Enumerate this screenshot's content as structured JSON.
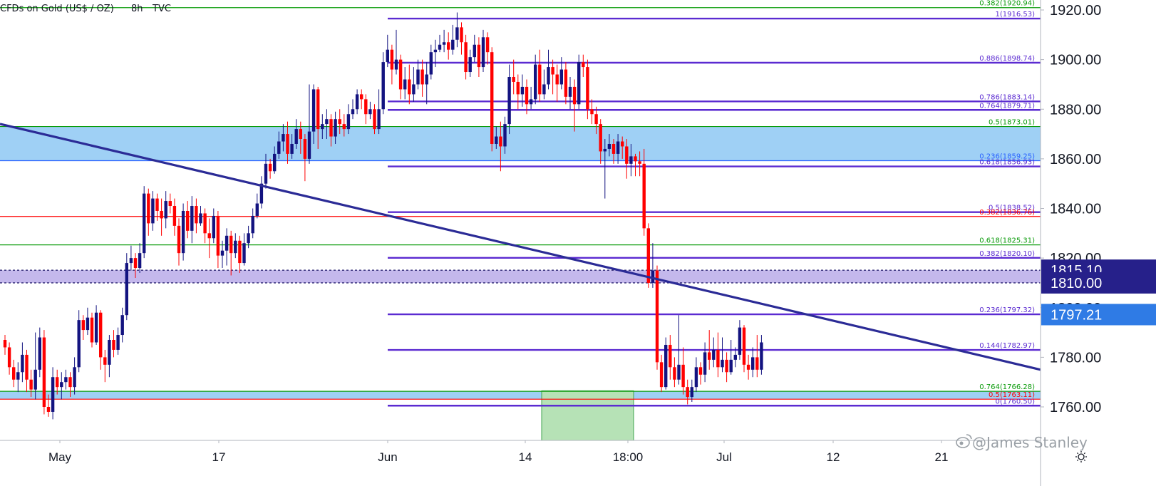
{
  "header": {
    "symbol": "CFDs on Gold (US$ / OZ)",
    "interval": "8h",
    "source": "TVC"
  },
  "watermark": {
    "text": "@James Stanley",
    "icon": "weibo-icon"
  },
  "settings_icon": "sun-icon",
  "colors": {
    "up_candle": "#131380",
    "down_candle": "#ff0000",
    "trendline": "#2b2b96",
    "fib_purple": "#5b2bd1",
    "fib_green": "#0a9b0a",
    "fib_red": "#ff0000",
    "zone_blue": "#9fd0f5",
    "zone_purple": "#c4b8ec",
    "zone_green": "#b6e2b6",
    "badge_dark": "#26208a",
    "badge_blue": "#2f7be5"
  },
  "chart_data": {
    "type": "candlestick",
    "x_labels": [
      "May",
      "17",
      "Jun",
      "14",
      "18:00",
      "Jul",
      "12",
      "21"
    ],
    "y_ticks": [
      1760,
      1780,
      1800,
      1820,
      1840,
      1860,
      1880,
      1900,
      1920
    ],
    "y_tick_labels": [
      "1760.00",
      "1780.00",
      "1800.00",
      "1820.00",
      "1840.00",
      "1860.00",
      "1880.00",
      "1900.00",
      "1920.00"
    ],
    "ylim": [
      1745,
      1923
    ],
    "price_badges": [
      {
        "label": "1815.10",
        "value": 1815.1,
        "style": "dark"
      },
      {
        "label": "1810.00",
        "value": 1810.0,
        "style": "dark"
      },
      {
        "label": "1797.21",
        "value": 1797.21,
        "style": "blue"
      }
    ],
    "zones": [
      {
        "from": 1859.25,
        "to": 1873.01,
        "color": "blue",
        "scope": "full"
      },
      {
        "from": 1810.0,
        "to": 1815.1,
        "color": "purple",
        "scope": "full"
      },
      {
        "from": 1763.11,
        "to": 1766.28,
        "color": "blue",
        "scope": "full"
      },
      {
        "from": 1745,
        "to": 1766.5,
        "color": "green",
        "scope": "box"
      }
    ],
    "fib_levels": [
      {
        "label": "0.382(1920.94)",
        "value": 1920.94,
        "color": "green",
        "scope": "full"
      },
      {
        "label": "1(1916.53)",
        "value": 1916.53,
        "color": "purple",
        "scope": "jun"
      },
      {
        "label": "0.886(1898.74)",
        "value": 1898.74,
        "color": "purple",
        "scope": "jun"
      },
      {
        "label": "0.786(1883.14)",
        "value": 1883.14,
        "color": "purple",
        "scope": "jun"
      },
      {
        "label": "0.764(1879.71)",
        "value": 1879.71,
        "color": "purple",
        "scope": "jun"
      },
      {
        "label": "0.5(1873.01)",
        "value": 1873.01,
        "color": "green",
        "scope": "full"
      },
      {
        "label": "0.236(1859.25)",
        "value": 1859.25,
        "color": "blue",
        "scope": "full"
      },
      {
        "label": "0.618(1856.93)",
        "value": 1856.93,
        "color": "purple",
        "scope": "jun"
      },
      {
        "label": "0.5(1838.52)",
        "value": 1838.52,
        "color": "purple",
        "scope": "jun"
      },
      {
        "label": "0.382(1836.76)",
        "value": 1836.76,
        "color": "red",
        "scope": "full"
      },
      {
        "label": "0.618(1825.31)",
        "value": 1825.31,
        "color": "green",
        "scope": "full"
      },
      {
        "label": "0.382(1820.10)",
        "value": 1820.1,
        "color": "purple",
        "scope": "jun"
      },
      {
        "label": "0.236(1797.32)",
        "value": 1797.32,
        "color": "purple",
        "scope": "jun"
      },
      {
        "label": "0.144(1782.97)",
        "value": 1782.97,
        "color": "purple",
        "scope": "jun"
      },
      {
        "label": "0.764(1766.28)",
        "value": 1766.28,
        "color": "green",
        "scope": "full"
      },
      {
        "label": "0.5(1763.11)",
        "value": 1763.11,
        "color": "red",
        "scope": "full"
      },
      {
        "label": "0(1760.50)",
        "value": 1760.5,
        "color": "purple",
        "scope": "jun"
      }
    ],
    "trendline": {
      "from": {
        "bar": -1,
        "value": 1874
      },
      "to": {
        "bar": 179,
        "value": 1799.5
      }
    },
    "candles": [
      [
        1787,
        1784,
        1789,
        1781
      ],
      [
        1784,
        1776,
        1786,
        1773
      ],
      [
        1776,
        1771,
        1779,
        1768
      ],
      [
        1771,
        1774,
        1778,
        1766
      ],
      [
        1774,
        1781,
        1786,
        1770
      ],
      [
        1781,
        1771,
        1783,
        1766
      ],
      [
        1771,
        1767,
        1775,
        1764
      ],
      [
        1767,
        1775,
        1790,
        1763
      ],
      [
        1775,
        1788,
        1792,
        1772
      ],
      [
        1788,
        1760,
        1791,
        1757
      ],
      [
        1760,
        1758,
        1765,
        1756
      ],
      [
        1758,
        1772,
        1776,
        1755
      ],
      [
        1772,
        1768,
        1775,
        1765
      ],
      [
        1768,
        1770,
        1774,
        1763
      ],
      [
        1770,
        1772,
        1775,
        1767
      ],
      [
        1772,
        1768,
        1774,
        1764
      ],
      [
        1768,
        1776,
        1780,
        1765
      ],
      [
        1776,
        1795,
        1799,
        1774
      ],
      [
        1795,
        1791,
        1797,
        1787
      ],
      [
        1791,
        1796,
        1800,
        1789
      ],
      [
        1796,
        1786,
        1798,
        1784
      ],
      [
        1786,
        1798,
        1801,
        1785
      ],
      [
        1798,
        1780,
        1799,
        1775
      ],
      [
        1780,
        1777,
        1783,
        1770
      ],
      [
        1777,
        1787,
        1789,
        1772
      ],
      [
        1787,
        1783,
        1791,
        1780
      ],
      [
        1783,
        1789,
        1792,
        1781
      ],
      [
        1789,
        1797,
        1800,
        1786
      ],
      [
        1797,
        1818,
        1822,
        1795
      ],
      [
        1818,
        1820,
        1825,
        1815
      ],
      [
        1820,
        1816,
        1822,
        1812
      ],
      [
        1816,
        1822,
        1826,
        1814
      ],
      [
        1822,
        1846,
        1849,
        1820
      ],
      [
        1846,
        1834,
        1848,
        1829
      ],
      [
        1834,
        1844,
        1847,
        1831
      ],
      [
        1844,
        1839,
        1846,
        1835
      ],
      [
        1839,
        1836,
        1844,
        1829
      ],
      [
        1836,
        1843,
        1847,
        1832
      ],
      [
        1843,
        1841,
        1846,
        1838
      ],
      [
        1841,
        1833,
        1844,
        1829
      ],
      [
        1833,
        1822,
        1836,
        1817
      ],
      [
        1822,
        1839,
        1842,
        1819
      ],
      [
        1839,
        1831,
        1843,
        1828
      ],
      [
        1831,
        1841,
        1845,
        1826
      ],
      [
        1841,
        1834,
        1844,
        1830
      ],
      [
        1834,
        1838,
        1841,
        1833
      ],
      [
        1838,
        1830,
        1840,
        1826
      ],
      [
        1830,
        1828,
        1836,
        1820
      ],
      [
        1828,
        1837,
        1840,
        1826
      ],
      [
        1837,
        1821,
        1839,
        1816
      ],
      [
        1821,
        1823,
        1827,
        1816
      ],
      [
        1823,
        1829,
        1832,
        1817
      ],
      [
        1829,
        1822,
        1831,
        1813
      ],
      [
        1822,
        1827,
        1830,
        1820
      ],
      [
        1827,
        1818,
        1829,
        1814
      ],
      [
        1818,
        1826,
        1830,
        1817
      ],
      [
        1826,
        1830,
        1833,
        1824
      ],
      [
        1830,
        1837,
        1840,
        1828
      ],
      [
        1837,
        1842,
        1846,
        1836
      ],
      [
        1842,
        1850,
        1853,
        1840
      ],
      [
        1850,
        1858,
        1862,
        1848
      ],
      [
        1858,
        1855,
        1860,
        1852
      ],
      [
        1855,
        1862,
        1865,
        1854
      ],
      [
        1862,
        1867,
        1871,
        1860
      ],
      [
        1867,
        1870,
        1874,
        1863
      ],
      [
        1870,
        1862,
        1875,
        1858
      ],
      [
        1862,
        1866,
        1870,
        1860
      ],
      [
        1866,
        1872,
        1876,
        1864
      ],
      [
        1872,
        1868,
        1875,
        1862
      ],
      [
        1868,
        1860,
        1870,
        1851
      ],
      [
        1860,
        1871,
        1890,
        1858
      ],
      [
        1871,
        1888,
        1890,
        1866
      ],
      [
        1888,
        1872,
        1889,
        1864
      ],
      [
        1872,
        1874,
        1878,
        1868
      ],
      [
        1874,
        1876,
        1880,
        1868
      ],
      [
        1876,
        1869,
        1878,
        1865
      ],
      [
        1869,
        1876,
        1879,
        1866
      ],
      [
        1876,
        1874,
        1880,
        1870
      ],
      [
        1874,
        1872,
        1878,
        1869
      ],
      [
        1872,
        1878,
        1882,
        1870
      ],
      [
        1878,
        1880,
        1884,
        1876
      ],
      [
        1880,
        1886,
        1888,
        1878
      ],
      [
        1886,
        1884,
        1888,
        1880
      ],
      [
        1884,
        1878,
        1886,
        1874
      ],
      [
        1878,
        1880,
        1883,
        1876
      ],
      [
        1880,
        1872,
        1882,
        1870
      ],
      [
        1872,
        1880,
        1888,
        1870
      ],
      [
        1880,
        1899,
        1903,
        1878
      ],
      [
        1899,
        1904,
        1910,
        1897
      ],
      [
        1904,
        1896,
        1906,
        1890
      ],
      [
        1896,
        1900,
        1912,
        1894
      ],
      [
        1900,
        1888,
        1902,
        1884
      ],
      [
        1888,
        1892,
        1897,
        1884
      ],
      [
        1892,
        1886,
        1898,
        1882
      ],
      [
        1886,
        1890,
        1897,
        1883
      ],
      [
        1890,
        1896,
        1900,
        1888
      ],
      [
        1896,
        1890,
        1900,
        1885
      ],
      [
        1890,
        1894,
        1899,
        1882
      ],
      [
        1894,
        1903,
        1906,
        1892
      ],
      [
        1903,
        1904,
        1908,
        1897
      ],
      [
        1904,
        1906,
        1910,
        1903
      ],
      [
        1906,
        1907,
        1912,
        1903
      ],
      [
        1907,
        1904,
        1911,
        1900
      ],
      [
        1904,
        1908,
        1914,
        1902
      ],
      [
        1908,
        1913,
        1919,
        1905
      ],
      [
        1913,
        1907,
        1915,
        1902
      ],
      [
        1907,
        1895,
        1910,
        1892
      ],
      [
        1895,
        1901,
        1904,
        1893
      ],
      [
        1901,
        1906,
        1910,
        1899
      ],
      [
        1906,
        1897,
        1909,
        1893
      ],
      [
        1897,
        1909,
        1912,
        1895
      ],
      [
        1909,
        1903,
        1911,
        1898
      ],
      [
        1903,
        1866,
        1905,
        1863
      ],
      [
        1866,
        1869,
        1873,
        1864
      ],
      [
        1869,
        1865,
        1875,
        1855
      ],
      [
        1865,
        1874,
        1877,
        1862
      ],
      [
        1874,
        1893,
        1898,
        1870
      ],
      [
        1893,
        1891,
        1900,
        1886
      ],
      [
        1891,
        1886,
        1894,
        1880
      ],
      [
        1886,
        1889,
        1894,
        1881
      ],
      [
        1889,
        1882,
        1892,
        1878
      ],
      [
        1882,
        1884,
        1889,
        1880
      ],
      [
        1884,
        1898,
        1902,
        1882
      ],
      [
        1898,
        1886,
        1904,
        1883
      ],
      [
        1886,
        1890,
        1896,
        1884
      ],
      [
        1890,
        1897,
        1904,
        1888
      ],
      [
        1897,
        1894,
        1900,
        1886
      ],
      [
        1894,
        1890,
        1898,
        1883
      ],
      [
        1890,
        1896,
        1901,
        1888
      ],
      [
        1896,
        1885,
        1899,
        1882
      ],
      [
        1885,
        1889,
        1893,
        1880
      ],
      [
        1889,
        1882,
        1892,
        1871
      ],
      [
        1882,
        1899,
        1902,
        1880
      ],
      [
        1899,
        1897,
        1902,
        1893
      ],
      [
        1897,
        1880,
        1900,
        1876
      ],
      [
        1880,
        1878,
        1884,
        1874
      ],
      [
        1878,
        1874,
        1881,
        1870
      ],
      [
        1874,
        1863,
        1876,
        1858
      ],
      [
        1863,
        1864,
        1868,
        1844
      ],
      [
        1864,
        1866,
        1870,
        1861
      ],
      [
        1866,
        1862,
        1868,
        1858
      ],
      [
        1862,
        1867,
        1870,
        1858
      ],
      [
        1867,
        1865,
        1869,
        1860
      ],
      [
        1865,
        1858,
        1868,
        1852
      ],
      [
        1858,
        1861,
        1866,
        1853
      ],
      [
        1861,
        1859,
        1862,
        1853
      ],
      [
        1859,
        1858,
        1863,
        1853
      ],
      [
        1858,
        1832,
        1864,
        1829
      ],
      [
        1832,
        1810,
        1834,
        1808
      ],
      [
        1810,
        1815,
        1826,
        1808
      ],
      [
        1815,
        1778,
        1817,
        1775
      ],
      [
        1778,
        1768,
        1781,
        1766
      ],
      [
        1768,
        1785,
        1788,
        1767
      ],
      [
        1785,
        1776,
        1789,
        1771
      ],
      [
        1776,
        1771,
        1780,
        1768
      ],
      [
        1771,
        1777,
        1797,
        1769
      ],
      [
        1777,
        1768,
        1784,
        1765
      ],
      [
        1768,
        1764,
        1771,
        1761
      ],
      [
        1764,
        1768,
        1771,
        1762
      ],
      [
        1768,
        1776,
        1780,
        1766
      ],
      [
        1776,
        1773,
        1778,
        1769
      ],
      [
        1773,
        1782,
        1786,
        1770
      ],
      [
        1782,
        1779,
        1791,
        1775
      ],
      [
        1779,
        1783,
        1788,
        1776
      ],
      [
        1783,
        1776,
        1790,
        1772
      ],
      [
        1776,
        1779,
        1788,
        1774
      ],
      [
        1779,
        1774,
        1782,
        1770
      ],
      [
        1774,
        1779,
        1787,
        1773
      ],
      [
        1779,
        1781,
        1784,
        1776
      ],
      [
        1781,
        1792,
        1795,
        1779
      ],
      [
        1792,
        1777,
        1793,
        1774
      ],
      [
        1777,
        1775,
        1781,
        1771
      ],
      [
        1775,
        1780,
        1784,
        1772
      ],
      [
        1780,
        1775,
        1789,
        1772
      ],
      [
        1775,
        1786,
        1789,
        1773
      ]
    ]
  }
}
